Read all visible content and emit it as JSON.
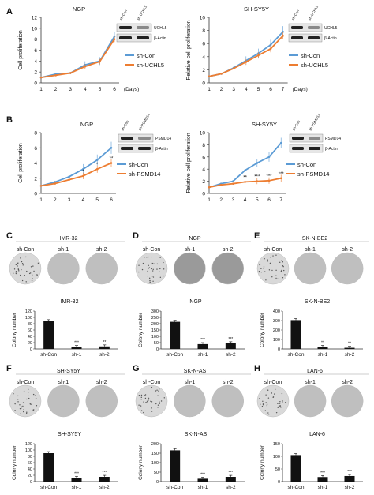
{
  "figure": {
    "panels": [
      {
        "letter": "A",
        "charts": [
          0,
          1
        ]
      },
      {
        "letter": "B",
        "charts": [
          2,
          3
        ]
      },
      {
        "letter": "C",
        "plates": [
          "sh-Con",
          "sh-1",
          "sh-2"
        ],
        "plate_title": "IMR-32",
        "bar": 4
      },
      {
        "letter": "D",
        "plates": [
          "sh-Con",
          "sh-1",
          "sh-2"
        ],
        "plate_title": "NGP",
        "bar": 5
      },
      {
        "letter": "E",
        "plates": [
          "sh-Con",
          "sh-1",
          "sh-2"
        ],
        "plate_title": "SK-N-BE2",
        "bar": 6
      },
      {
        "letter": "F",
        "plates": [
          "sh-Con",
          "sh-1",
          "sh-2"
        ],
        "plate_title": "SH-SY5Y",
        "bar": 7
      },
      {
        "letter": "G",
        "plates": [
          "sh-Con",
          "sh-1",
          "sh-2"
        ],
        "plate_title": "SK-N-AS",
        "bar": 8
      },
      {
        "letter": "H",
        "plates": [
          "sh-Con",
          "sh-1",
          "sh-2"
        ],
        "plate_title": "LAN-6",
        "bar": 9
      }
    ],
    "blot_A": {
      "lanes": [
        "sh-Con",
        "sh-UCHL5"
      ],
      "rows": [
        "UCHL5",
        "β-Actin"
      ]
    },
    "blot_B": {
      "lanes": [
        "sh-Con",
        "sh-PSMD14"
      ],
      "rows": [
        "PSMD14",
        "β-Actin"
      ]
    },
    "significance": {
      "star": "*",
      "double": "**",
      "triple": "***"
    },
    "colors": {
      "blue": "#5b9bd5",
      "orange": "#ed7d31",
      "bar": "#111111",
      "plate_light": "#d9d9d9",
      "plate_dark": "#9a9a9a"
    }
  },
  "chart_data": [
    {
      "type": "line",
      "title": "NGP",
      "xlabel": "(Days)",
      "ylabel": "Cell proliferation",
      "x": [
        1,
        2,
        3,
        4,
        5,
        6
      ],
      "ylim": [
        0,
        12
      ],
      "yticks": [
        0,
        2,
        4,
        6,
        8,
        10,
        12
      ],
      "series": [
        {
          "name": "sh-Con",
          "values": [
            1.0,
            1.6,
            1.8,
            3.3,
            4.0,
            8.5
          ]
        },
        {
          "name": "sh-UCHL5",
          "values": [
            1.0,
            1.4,
            1.8,
            3.0,
            3.9,
            8.0
          ]
        }
      ]
    },
    {
      "type": "line",
      "title": "SH-SY5Y",
      "xlabel": "(Days)",
      "ylabel": "Relative cell proliferation",
      "x": [
        1,
        2,
        3,
        4,
        5,
        6,
        7
      ],
      "ylim": [
        0,
        10
      ],
      "yticks": [
        0,
        2,
        4,
        6,
        8,
        10
      ],
      "series": [
        {
          "name": "sh-Con",
          "values": [
            1.0,
            1.4,
            2.3,
            3.4,
            4.5,
            5.8,
            7.8
          ]
        },
        {
          "name": "sh-UCHL5",
          "values": [
            1.0,
            1.4,
            2.2,
            3.2,
            4.2,
            5.2,
            7.2
          ]
        }
      ]
    },
    {
      "type": "line",
      "title": "NGP",
      "xlabel": "",
      "ylabel": "Cell proliferation",
      "x": [
        1,
        2,
        3,
        4,
        5,
        6
      ],
      "ylim": [
        0,
        8
      ],
      "yticks": [
        0,
        2,
        4,
        6,
        8
      ],
      "series": [
        {
          "name": "sh-Con",
          "values": [
            1.0,
            1.5,
            2.2,
            3.2,
            4.4,
            6.0
          ]
        },
        {
          "name": "sh-PSMD14",
          "values": [
            1.0,
            1.3,
            1.8,
            2.3,
            3.2,
            4.0
          ]
        }
      ],
      "sig": [
        {
          "x": 4,
          "label": "*"
        },
        {
          "x": 5,
          "label": "*"
        },
        {
          "x": 6,
          "label": "**"
        }
      ]
    },
    {
      "type": "line",
      "title": "SH-SY5Y",
      "xlabel": "",
      "ylabel": "Relative cell proliferation",
      "x": [
        1,
        2,
        3,
        4,
        5,
        6,
        7
      ],
      "ylim": [
        0,
        10
      ],
      "yticks": [
        0,
        2,
        4,
        6,
        8,
        10
      ],
      "series": [
        {
          "name": "sh-Con",
          "values": [
            1.0,
            1.6,
            2.0,
            3.8,
            5.0,
            6.0,
            8.3
          ]
        },
        {
          "name": "sh-PSMD14",
          "values": [
            1.0,
            1.4,
            1.6,
            1.9,
            2.0,
            2.1,
            2.5
          ]
        }
      ],
      "sig": [
        {
          "x": 4,
          "label": "**"
        },
        {
          "x": 5,
          "label": "***"
        },
        {
          "x": 6,
          "label": "***"
        },
        {
          "x": 7,
          "label": "***"
        }
      ]
    },
    {
      "type": "bar",
      "title": "IMR-32",
      "ylabel": "Colony number",
      "categories": [
        "sh-Con",
        "sh-1",
        "sh-2"
      ],
      "values": [
        88,
        6,
        8
      ],
      "ylim": [
        0,
        120
      ],
      "yticks": [
        0,
        20,
        40,
        60,
        80,
        100,
        120
      ],
      "sig": [
        "",
        "***",
        "**"
      ]
    },
    {
      "type": "bar",
      "title": "NGP",
      "ylabel": "Colony number",
      "categories": [
        "sh-Con",
        "sh-1",
        "sh-2"
      ],
      "values": [
        215,
        38,
        45
      ],
      "ylim": [
        0,
        300
      ],
      "yticks": [
        0,
        50,
        100,
        150,
        200,
        250,
        300
      ],
      "sig": [
        "",
        "***",
        "***"
      ]
    },
    {
      "type": "bar",
      "title": "SK-N-BE2",
      "ylabel": "Colony number",
      "categories": [
        "sh-Con",
        "sh-1",
        "sh-2"
      ],
      "values": [
        305,
        22,
        12
      ],
      "ylim": [
        0,
        400
      ],
      "yticks": [
        0,
        100,
        200,
        300,
        400
      ],
      "sig": [
        "",
        "**",
        "**"
      ]
    },
    {
      "type": "bar",
      "title": "SH-SY5Y",
      "ylabel": "Colony number",
      "categories": [
        "sh-Con",
        "sh-1",
        "sh-2"
      ],
      "values": [
        90,
        12,
        15
      ],
      "ylim": [
        0,
        120
      ],
      "yticks": [
        0,
        20,
        40,
        60,
        80,
        100,
        120
      ],
      "sig": [
        "",
        "***",
        "***"
      ]
    },
    {
      "type": "bar",
      "title": "SK-N-AS",
      "ylabel": "Colony number",
      "categories": [
        "sh-Con",
        "sh-1",
        "sh-2"
      ],
      "values": [
        165,
        15,
        25
      ],
      "ylim": [
        0,
        200
      ],
      "yticks": [
        0,
        50,
        100,
        150,
        200
      ],
      "sig": [
        "",
        "***",
        "***"
      ]
    },
    {
      "type": "bar",
      "title": "LAN-6",
      "ylabel": "Colony number",
      "categories": [
        "sh-Con",
        "sh-1",
        "sh-2"
      ],
      "values": [
        105,
        18,
        22
      ],
      "ylim": [
        0,
        150
      ],
      "yticks": [
        0,
        50,
        100,
        150
      ],
      "sig": [
        "",
        "***",
        "***"
      ]
    }
  ]
}
